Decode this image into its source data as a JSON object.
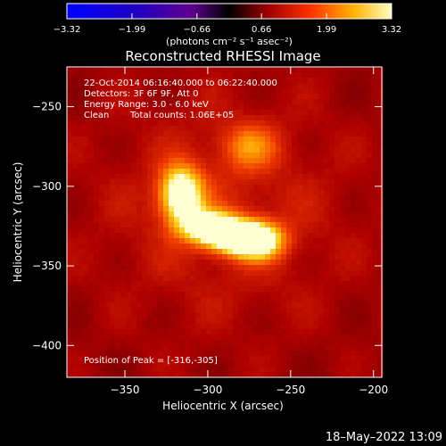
{
  "chart_data": {
    "type": "heatmap",
    "title": "Reconstructed RHESSI Image",
    "xlabel": "Heliocentric X (arcsec)",
    "ylabel": "Heliocentric Y (arcsec)",
    "xlim": [
      -385,
      -195
    ],
    "ylim": [
      -420,
      -225
    ],
    "x_ticks": [
      -350,
      -300,
      -250,
      -200
    ],
    "y_ticks": [
      -250,
      -300,
      -350,
      -400
    ],
    "x_tick_labels": [
      "−350",
      "−300",
      "−250",
      "−200"
    ],
    "y_tick_labels": [
      "−250",
      "−300",
      "−350",
      "−400"
    ],
    "colorbar": {
      "min": -3.32,
      "max": 3.32,
      "ticks": [
        -3.32,
        -1.99,
        -0.66,
        0.66,
        1.99,
        3.32
      ],
      "tick_labels": [
        "−3.32",
        "−1.99",
        "−0.66",
        "0.66",
        "1.99",
        "3.32"
      ],
      "unit_label": "(photons cm⁻² s⁻¹ asec⁻²)"
    },
    "annotations": [
      "22-Oct-2014 06:16:40.000 to 06:22:40.000",
      "Detectors: 3F 6F 9F, Att 0",
      "Energy Range: 3.0 - 6.0 keV",
      "Clean",
      "Total counts: 1.06E+05"
    ],
    "peak_label": "Position of Peak = [-316,-305]",
    "peak": [
      -316,
      -305
    ],
    "sources": [
      {
        "x": -316,
        "y": -305,
        "sx": 9,
        "sy": 12,
        "amp": 3.32
      },
      {
        "x": -300,
        "y": -325,
        "sx": 12,
        "sy": 7,
        "amp": 2.8
      },
      {
        "x": -285,
        "y": -332,
        "sx": 12,
        "sy": 7,
        "amp": 2.8
      },
      {
        "x": -270,
        "y": -334,
        "sx": 11,
        "sy": 8,
        "amp": 3.0
      },
      {
        "x": -275,
        "y": -275,
        "sx": 12,
        "sy": 10,
        "amp": 1.3
      }
    ]
  },
  "footer": {
    "timestamp": "18–May–2022 13:09"
  }
}
